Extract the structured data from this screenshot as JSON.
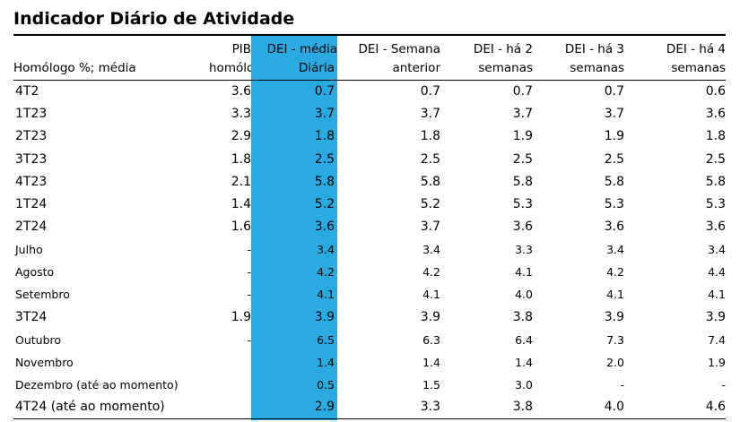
{
  "title": "Indicador Diário de Atividade",
  "colors": {
    "highlight": "#29abe2"
  },
  "header": {
    "row1": [
      "",
      "PIB",
      "DEI - média",
      "DEI - Semana",
      "DEI - há 2",
      "DEI - há 3",
      "DEI - há 4"
    ],
    "row2": [
      "Homólogo %; média",
      "homólogo",
      "Diária",
      "anterior",
      "semanas",
      "semanas",
      "semanas"
    ]
  },
  "rows": [
    {
      "label": "4T2",
      "small": false,
      "values": [
        "3.6",
        "0.7",
        "0.7",
        "0.7",
        "0.7",
        "0.6"
      ]
    },
    {
      "label": "1T23",
      "small": false,
      "values": [
        "3.3",
        "3.7",
        "3.7",
        "3.7",
        "3.7",
        "3.6"
      ]
    },
    {
      "label": "2T23",
      "small": false,
      "values": [
        "2.9",
        "1.8",
        "1.8",
        "1.9",
        "1.9",
        "1.8"
      ]
    },
    {
      "label": "3T23",
      "small": false,
      "values": [
        "1.8",
        "2.5",
        "2.5",
        "2.5",
        "2.5",
        "2.5"
      ]
    },
    {
      "label": "4T23",
      "small": false,
      "values": [
        "2.1",
        "5.8",
        "5.8",
        "5.8",
        "5.8",
        "5.8"
      ]
    },
    {
      "label": "1T24",
      "small": false,
      "values": [
        "1.4",
        "5.2",
        "5.2",
        "5.3",
        "5.3",
        "5.3"
      ]
    },
    {
      "label": "2T24",
      "small": false,
      "values": [
        "1.6",
        "3.6",
        "3.7",
        "3.6",
        "3.6",
        "3.6"
      ]
    },
    {
      "label": "Julho",
      "small": true,
      "values": [
        "-",
        "3.4",
        "3.4",
        "3.3",
        "3.4",
        "3.4"
      ]
    },
    {
      "label": "Agosto",
      "small": true,
      "values": [
        "-",
        "4.2",
        "4.2",
        "4.1",
        "4.2",
        "4.4"
      ]
    },
    {
      "label": "Setembro",
      "small": true,
      "values": [
        "-",
        "4.1",
        "4.1",
        "4.0",
        "4.1",
        "4.1"
      ]
    },
    {
      "label": "3T24",
      "small": false,
      "values": [
        "1.9",
        "3.9",
        "3.9",
        "3.8",
        "3.9",
        "3.9"
      ]
    },
    {
      "label": "Outubro",
      "small": true,
      "values": [
        "-",
        "6.5",
        "6.3",
        "6.4",
        "7.3",
        "7.4"
      ]
    },
    {
      "label": "Novembro",
      "small": true,
      "values": [
        "",
        "1.4",
        "1.4",
        "1.4",
        "2.0",
        "1.9"
      ]
    },
    {
      "label": "Dezembro (até ao momento)",
      "small": true,
      "values": [
        "",
        "0.5",
        "1.5",
        "3.0",
        "-",
        "-"
      ]
    },
    {
      "label": "4T24 (até ao momento)",
      "small": false,
      "values": [
        "",
        "2.9",
        "3.3",
        "3.8",
        "4.0",
        "4.6"
      ]
    }
  ]
}
